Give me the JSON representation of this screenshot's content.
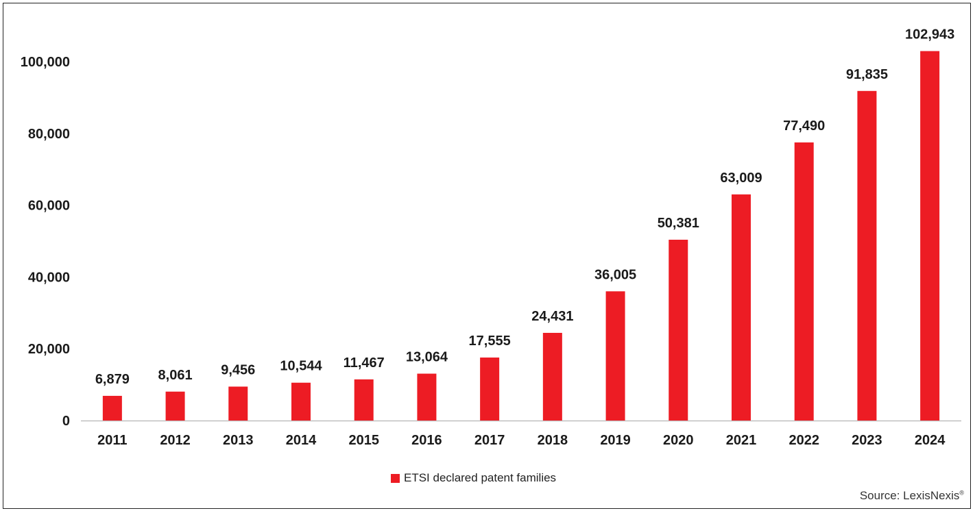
{
  "colors": {
    "bar": "#ed1c24",
    "axis": "#bfbfbf",
    "text": "#1a1a1a"
  },
  "chart_data": {
    "type": "bar",
    "categories": [
      "2011",
      "2012",
      "2013",
      "2014",
      "2015",
      "2016",
      "2017",
      "2018",
      "2019",
      "2020",
      "2021",
      "2022",
      "2023",
      "2024"
    ],
    "series": [
      {
        "name": "ETSI declared patent families",
        "values": [
          6879,
          8061,
          9456,
          10544,
          11467,
          13064,
          17555,
          24431,
          36005,
          50381,
          63009,
          77490,
          91835,
          102943
        ]
      }
    ],
    "data_labels": [
      "6,879",
      "8,061",
      "9,456",
      "10,544",
      "11,467",
      "13,064",
      "17,555",
      "24,431",
      "36,005",
      "50,381",
      "63,009",
      "77,490",
      "91,835",
      "102,943"
    ],
    "yticks": [
      0,
      20000,
      40000,
      60000,
      80000,
      100000
    ],
    "ytick_labels": [
      "0",
      "20,000",
      "40,000",
      "60,000",
      "80,000",
      "100,000"
    ],
    "ylim": [
      0,
      105000
    ],
    "grid": false,
    "legend_position": "bottom-center"
  },
  "legend": {
    "label": "ETSI declared patent families"
  },
  "source": {
    "text": "Source: LexisNexis",
    "mark": "®"
  }
}
